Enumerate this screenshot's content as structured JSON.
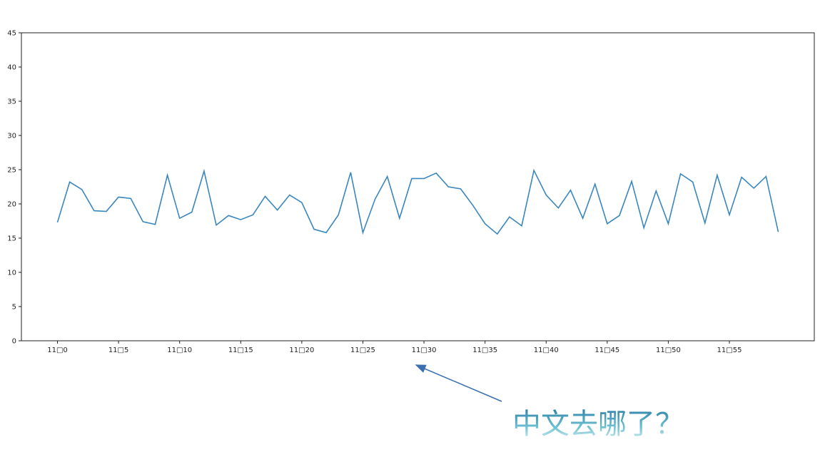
{
  "chart_data": {
    "type": "line",
    "x": [
      0,
      1,
      2,
      3,
      4,
      5,
      6,
      7,
      8,
      9,
      10,
      11,
      12,
      13,
      14,
      15,
      16,
      17,
      18,
      19,
      20,
      21,
      22,
      23,
      24,
      25,
      26,
      27,
      28,
      29,
      30,
      31,
      32,
      33,
      34,
      35,
      36,
      37,
      38,
      39,
      40,
      41,
      42,
      43,
      44,
      45,
      46,
      47,
      48,
      49,
      50,
      51,
      52,
      53,
      54,
      55,
      56,
      57,
      58,
      59
    ],
    "values": [
      17.3,
      23.2,
      22.1,
      19.0,
      18.9,
      21.0,
      20.8,
      17.4,
      17.0,
      24.2,
      17.9,
      18.8,
      24.8,
      16.9,
      18.3,
      17.7,
      18.4,
      21.1,
      19.1,
      21.3,
      20.2,
      16.3,
      15.8,
      18.4,
      24.6,
      15.8,
      20.7,
      24.0,
      17.9,
      23.7,
      23.7,
      24.5,
      22.5,
      22.2,
      19.8,
      17.1,
      15.6,
      18.1,
      16.8,
      24.9,
      21.3,
      19.4,
      22.0,
      17.9,
      22.9,
      17.1,
      18.3,
      23.3,
      16.5,
      21.9,
      17.1,
      24.4,
      23.2,
      17.2,
      24.2,
      18.4,
      23.9,
      22.3,
      24.0,
      15.9
    ],
    "color": "#3a87be",
    "xlim": [
      -2.95,
      61.95
    ],
    "xticks": [
      {
        "value": 0,
        "label": "11□0"
      },
      {
        "value": 5,
        "label": "11□5"
      },
      {
        "value": 10,
        "label": "11□10"
      },
      {
        "value": 15,
        "label": "11□15"
      },
      {
        "value": 20,
        "label": "11□20"
      },
      {
        "value": 25,
        "label": "11□25"
      },
      {
        "value": 30,
        "label": "11□30"
      },
      {
        "value": 35,
        "label": "11□35"
      },
      {
        "value": 40,
        "label": "11□40"
      },
      {
        "value": 45,
        "label": "11□45"
      },
      {
        "value": 50,
        "label": "11□50"
      },
      {
        "value": 55,
        "label": "11□55"
      }
    ],
    "ylim": [
      0,
      45
    ],
    "yticks": [
      0,
      5,
      10,
      15,
      20,
      25,
      30,
      35,
      40,
      45
    ],
    "annotation": "中文去哪了？"
  }
}
